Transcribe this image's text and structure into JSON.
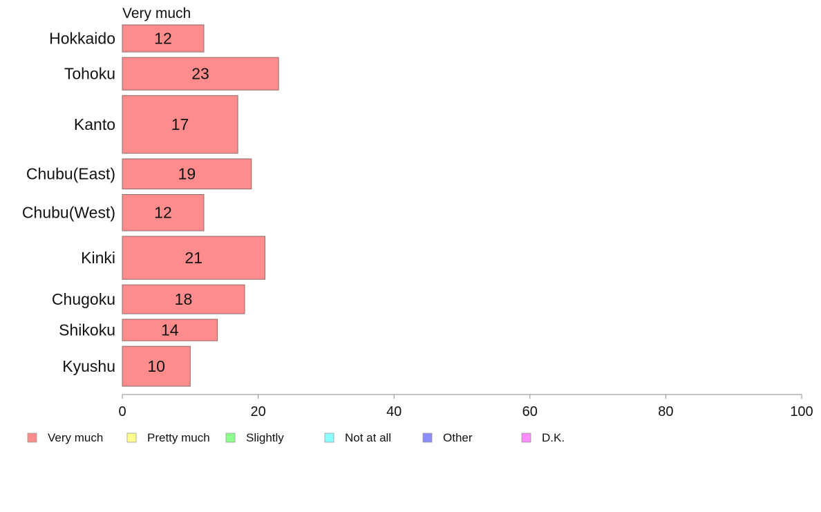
{
  "chart_data": {
    "type": "bar",
    "orientation": "horizontal",
    "series_title": "Very much",
    "categories": [
      "Hokkaido",
      "Tohoku",
      "Kanto",
      "Chubu(East)",
      "Chubu(West)",
      "Kinki",
      "Chugoku",
      "Shikoku",
      "Kyushu"
    ],
    "values": [
      12,
      23,
      17,
      19,
      12,
      21,
      18,
      14,
      10
    ],
    "bar_widths_relative": [
      4.4,
      5.3,
      9.4,
      4.9,
      5.9,
      7.0,
      4.7,
      3.5,
      6.5
    ],
    "xlim": [
      0,
      100
    ],
    "xticks": [
      0,
      20,
      40,
      60,
      80,
      100
    ],
    "bar_color": "#ff8c8c",
    "bar_stroke": "#8a6a6a",
    "legend": [
      {
        "label": "Very much",
        "color": "#ff8c8c"
      },
      {
        "label": "Pretty much",
        "color": "#ffff8c"
      },
      {
        "label": "Slightly",
        "color": "#8cff8c"
      },
      {
        "label": "Not at all",
        "color": "#8cffff"
      },
      {
        "label": "Other",
        "color": "#8c8cff"
      },
      {
        "label": "D.K.",
        "color": "#ff8cff"
      }
    ],
    "legend_position": "bottom",
    "grid": false
  }
}
